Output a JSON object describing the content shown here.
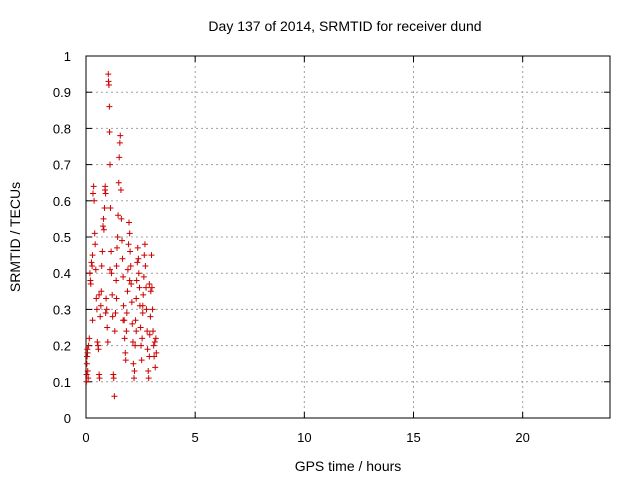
{
  "chart_data": {
    "type": "scatter",
    "title": "Day 137 of 2014, SRMTID for receiver dund",
    "xlabel": "GPS time / hours",
    "ylabel": "SRMTID / TECUs",
    "xlim": [
      0,
      24
    ],
    "ylim": [
      0,
      1
    ],
    "xticks": [
      0,
      5,
      10,
      15,
      20
    ],
    "yticks": [
      0,
      0.1,
      0.2,
      0.3,
      0.4,
      0.5,
      0.6,
      0.7,
      0.8,
      0.9,
      1
    ],
    "xtick_labels": [
      "0",
      "5",
      "10",
      "15",
      "20"
    ],
    "ytick_labels": [
      "0",
      "0.1",
      "0.2",
      "0.3",
      "0.4",
      "0.5",
      "0.6",
      "0.7",
      "0.8",
      "0.9",
      "1"
    ],
    "grid": true,
    "marker": "+",
    "color": "#cc0000",
    "series": [
      {
        "points": [
          [
            0.02,
            0.1
          ],
          [
            0.03,
            0.12
          ],
          [
            0.04,
            0.15
          ],
          [
            0.05,
            0.17
          ],
          [
            0.06,
            0.19
          ],
          [
            0.07,
            0.18
          ],
          [
            0.08,
            0.13
          ],
          [
            0.1,
            0.11
          ],
          [
            0.12,
            0.2
          ],
          [
            0.15,
            0.22
          ],
          [
            0.18,
            0.4
          ],
          [
            0.2,
            0.38
          ],
          [
            0.22,
            0.37
          ],
          [
            0.25,
            0.43
          ],
          [
            0.28,
            0.42
          ],
          [
            0.3,
            0.45
          ],
          [
            0.32,
            0.62
          ],
          [
            0.35,
            0.64
          ],
          [
            0.37,
            0.6
          ],
          [
            0.4,
            0.51
          ],
          [
            0.42,
            0.48
          ],
          [
            0.45,
            0.41
          ],
          [
            0.47,
            0.33
          ],
          [
            0.5,
            0.3
          ],
          [
            0.52,
            0.21
          ],
          [
            0.55,
            0.2
          ],
          [
            0.57,
            0.19
          ],
          [
            0.6,
            0.12
          ],
          [
            0.62,
            0.11
          ],
          [
            0.65,
            0.28
          ],
          [
            0.68,
            0.31
          ],
          [
            0.7,
            0.35
          ],
          [
            0.72,
            0.42
          ],
          [
            0.75,
            0.46
          ],
          [
            0.78,
            0.53
          ],
          [
            0.8,
            0.55
          ],
          [
            0.82,
            0.52
          ],
          [
            0.85,
            0.58
          ],
          [
            0.87,
            0.63
          ],
          [
            0.88,
            0.64
          ],
          [
            0.9,
            0.62
          ],
          [
            0.92,
            0.33
          ],
          [
            0.95,
            0.3
          ],
          [
            0.97,
            0.25
          ],
          [
            1.0,
            0.21
          ],
          [
            1.02,
            0.95
          ],
          [
            1.03,
            0.93
          ],
          [
            1.05,
            0.92
          ],
          [
            1.07,
            0.86
          ],
          [
            1.08,
            0.79
          ],
          [
            1.1,
            0.7
          ],
          [
            1.12,
            0.58
          ],
          [
            1.15,
            0.46
          ],
          [
            1.17,
            0.4
          ],
          [
            1.2,
            0.34
          ],
          [
            1.22,
            0.28
          ],
          [
            1.25,
            0.12
          ],
          [
            1.27,
            0.11
          ],
          [
            1.3,
            0.06
          ],
          [
            1.32,
            0.24
          ],
          [
            1.35,
            0.29
          ],
          [
            1.38,
            0.38
          ],
          [
            1.4,
            0.42
          ],
          [
            1.42,
            0.47
          ],
          [
            1.45,
            0.5
          ],
          [
            1.47,
            0.56
          ],
          [
            1.5,
            0.65
          ],
          [
            1.52,
            0.72
          ],
          [
            1.55,
            0.76
          ],
          [
            1.57,
            0.78
          ],
          [
            1.6,
            0.63
          ],
          [
            1.62,
            0.55
          ],
          [
            1.65,
            0.49
          ],
          [
            1.67,
            0.44
          ],
          [
            1.7,
            0.39
          ],
          [
            1.72,
            0.31
          ],
          [
            1.75,
            0.27
          ],
          [
            1.77,
            0.22
          ],
          [
            1.8,
            0.18
          ],
          [
            1.82,
            0.16
          ],
          [
            1.85,
            0.24
          ],
          [
            1.87,
            0.29
          ],
          [
            1.9,
            0.35
          ],
          [
            1.92,
            0.41
          ],
          [
            1.95,
            0.48
          ],
          [
            1.97,
            0.54
          ],
          [
            2.0,
            0.51
          ],
          [
            2.02,
            0.46
          ],
          [
            2.05,
            0.42
          ],
          [
            2.07,
            0.37
          ],
          [
            2.1,
            0.32
          ],
          [
            2.12,
            0.26
          ],
          [
            2.15,
            0.21
          ],
          [
            2.17,
            0.15
          ],
          [
            2.2,
            0.11
          ],
          [
            2.22,
            0.13
          ],
          [
            2.25,
            0.2
          ],
          [
            2.27,
            0.27
          ],
          [
            2.3,
            0.33
          ],
          [
            2.32,
            0.38
          ],
          [
            2.35,
            0.43
          ],
          [
            2.37,
            0.47
          ],
          [
            2.4,
            0.44
          ],
          [
            2.42,
            0.4
          ],
          [
            2.45,
            0.36
          ],
          [
            2.47,
            0.31
          ],
          [
            2.5,
            0.25
          ],
          [
            2.52,
            0.2
          ],
          [
            2.55,
            0.16
          ],
          [
            2.57,
            0.22
          ],
          [
            2.6,
            0.29
          ],
          [
            2.62,
            0.34
          ],
          [
            2.65,
            0.39
          ],
          [
            2.67,
            0.45
          ],
          [
            2.7,
            0.48
          ],
          [
            2.72,
            0.42
          ],
          [
            2.75,
            0.36
          ],
          [
            2.77,
            0.3
          ],
          [
            2.8,
            0.24
          ],
          [
            2.82,
            0.19
          ],
          [
            2.85,
            0.13
          ],
          [
            2.87,
            0.11
          ],
          [
            2.9,
            0.17
          ],
          [
            2.92,
            0.23
          ],
          [
            2.95,
            0.28
          ],
          [
            2.97,
            0.35
          ],
          [
            3.0,
            0.45
          ],
          [
            3.02,
            0.36
          ],
          [
            3.05,
            0.3
          ],
          [
            3.07,
            0.24
          ],
          [
            3.1,
            0.2
          ],
          [
            3.12,
            0.17
          ],
          [
            3.15,
            0.21
          ],
          [
            3.17,
            0.14
          ],
          [
            3.2,
            0.22
          ],
          [
            3.22,
            0.18
          ],
          [
            0.3,
            0.27
          ],
          [
            0.6,
            0.34
          ],
          [
            0.9,
            0.29
          ],
          [
            1.1,
            0.41
          ],
          [
            1.4,
            0.33
          ],
          [
            1.7,
            0.27
          ],
          [
            2.0,
            0.38
          ],
          [
            2.3,
            0.24
          ],
          [
            2.6,
            0.31
          ],
          [
            2.9,
            0.37
          ]
        ]
      }
    ]
  }
}
